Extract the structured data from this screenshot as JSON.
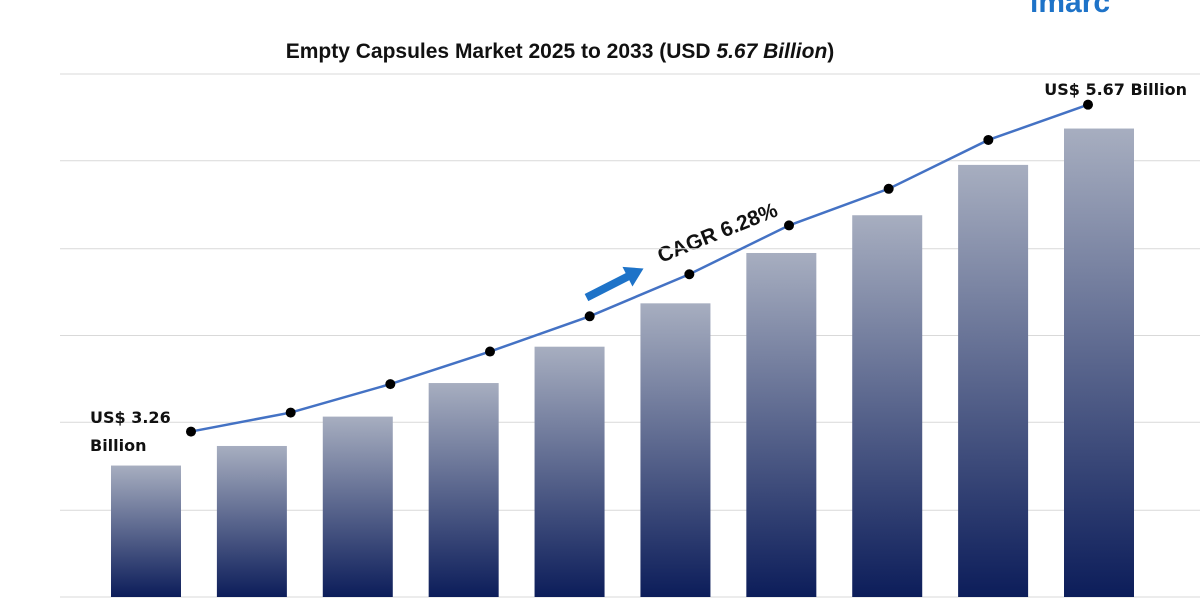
{
  "chart_data": {
    "type": "bar",
    "title": [
      "Empty Capsules Market 2025 to 2033 (USD ",
      "5.67 Billion",
      ")"
    ],
    "logo": "imarc",
    "annotation": "CAGR 6.28%",
    "values": [
      3.26,
      3.4,
      3.61,
      3.85,
      4.11,
      4.42,
      4.78,
      5.05,
      5.41,
      5.67
    ],
    "value_labels": [
      "US$ 3.26 Billion",
      null,
      null,
      null,
      null,
      null,
      null,
      null,
      null,
      "US$ 5.67 Billion"
    ],
    "color": [
      "#a7aec0",
      "#0c1d5a"
    ],
    "line_color": "#4472c4",
    "ylim": [
      2.32,
      6.06
    ],
    "yticks": [
      2.32,
      2.94,
      3.57,
      4.19,
      4.81,
      5.44,
      6.06
    ],
    "grid": true,
    "tick_labels": false
  }
}
